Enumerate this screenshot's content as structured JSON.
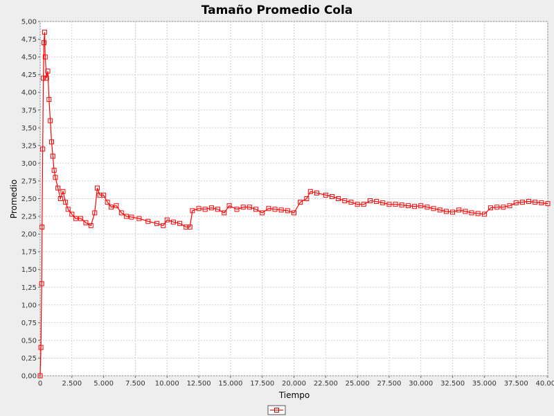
{
  "chart_data": {
    "type": "line",
    "title": "Tamaño Promedio Cola",
    "xlabel": "Tiempo",
    "ylabel": "Promedio",
    "xlim": [
      0,
      40000
    ],
    "ylim": [
      0,
      5
    ],
    "x_ticks": [
      "0",
      "2.500",
      "5.000",
      "7.500",
      "10.000",
      "12.500",
      "15.000",
      "17.500",
      "20.000",
      "22.500",
      "25.000",
      "27.500",
      "30.000",
      "32.500",
      "35.000",
      "37.500",
      "40.000"
    ],
    "y_ticks": [
      "0,00",
      "0,25",
      "0,50",
      "0,75",
      "1,00",
      "1,25",
      "1,50",
      "1,75",
      "2,00",
      "2,25",
      "2,50",
      "2,75",
      "3,00",
      "3,25",
      "3,50",
      "3,75",
      "4,00",
      "4,25",
      "4,50",
      "4,75",
      "5,00"
    ],
    "grid": true,
    "legend": "bottom-center",
    "series": [
      {
        "name": "",
        "color": "#ff0000",
        "marker": "square",
        "x": [
          0,
          60,
          120,
          150,
          200,
          250,
          300,
          350,
          400,
          500,
          600,
          700,
          800,
          900,
          1000,
          1100,
          1200,
          1400,
          1600,
          1800,
          2000,
          2200,
          2500,
          2800,
          3200,
          3600,
          4000,
          4300,
          4500,
          4700,
          5000,
          5300,
          5600,
          6000,
          6400,
          6800,
          7200,
          7800,
          8500,
          9200,
          9700,
          10000,
          10500,
          11000,
          11500,
          11800,
          12000,
          12500,
          13000,
          13500,
          14000,
          14500,
          14900,
          15500,
          16000,
          16500,
          17000,
          17500,
          18000,
          18500,
          19000,
          19500,
          20000,
          20500,
          21000,
          21300,
          21800,
          22500,
          23000,
          23500,
          24000,
          24500,
          25000,
          25500,
          26000,
          26500,
          27000,
          27500,
          28000,
          28500,
          29000,
          29500,
          30000,
          30500,
          31000,
          31500,
          32000,
          32500,
          33000,
          33500,
          34000,
          34500,
          35000,
          35500,
          36000,
          36500,
          37000,
          37500,
          38000,
          38500,
          39000,
          39500,
          40000
        ],
        "y": [
          0.0,
          0.4,
          1.3,
          2.1,
          3.2,
          4.2,
          4.7,
          4.85,
          4.5,
          4.2,
          4.3,
          3.9,
          3.6,
          3.3,
          3.1,
          2.9,
          2.8,
          2.65,
          2.5,
          2.6,
          2.45,
          2.35,
          2.28,
          2.22,
          2.22,
          2.16,
          2.12,
          2.3,
          2.65,
          2.55,
          2.55,
          2.45,
          2.38,
          2.4,
          2.3,
          2.25,
          2.24,
          2.22,
          2.18,
          2.15,
          2.12,
          2.2,
          2.17,
          2.15,
          2.1,
          2.1,
          2.33,
          2.36,
          2.35,
          2.37,
          2.35,
          2.3,
          2.4,
          2.35,
          2.38,
          2.38,
          2.35,
          2.3,
          2.36,
          2.35,
          2.34,
          2.33,
          2.3,
          2.45,
          2.5,
          2.6,
          2.58,
          2.55,
          2.53,
          2.5,
          2.47,
          2.45,
          2.42,
          2.42,
          2.47,
          2.46,
          2.44,
          2.42,
          2.42,
          2.41,
          2.4,
          2.39,
          2.4,
          2.38,
          2.36,
          2.34,
          2.32,
          2.31,
          2.34,
          2.32,
          2.3,
          2.29,
          2.28,
          2.37,
          2.38,
          2.38,
          2.4,
          2.44,
          2.45,
          2.46,
          2.45,
          2.44,
          2.43
        ]
      }
    ]
  }
}
